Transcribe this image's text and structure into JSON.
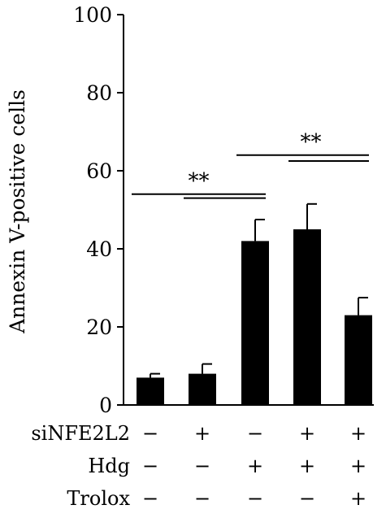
{
  "chart_data": {
    "type": "bar",
    "title": "",
    "xlabel": "",
    "ylabel": "Annexin V-positive cells",
    "ylim": [
      0,
      100
    ],
    "yticks": [
      0,
      20,
      40,
      60,
      80,
      100
    ],
    "grid": false,
    "legend": "none",
    "bar_color": "#000000",
    "values": [
      7,
      8,
      42,
      45,
      23
    ],
    "errors": [
      1,
      2.5,
      5.5,
      6.5,
      4.5
    ],
    "conditions": [
      {
        "label": "siNFE2L2",
        "values": [
          "−",
          "+",
          "−",
          "+",
          "+"
        ]
      },
      {
        "label": "Hdg",
        "values": [
          "−",
          "−",
          "+",
          "+",
          "+"
        ]
      },
      {
        "label": "Trolox",
        "values": [
          "−",
          "−",
          "−",
          "−",
          "+"
        ]
      }
    ],
    "significance": [
      {
        "label": "**",
        "from": 0,
        "to": 2,
        "inner_from": 1,
        "inner_to": 2,
        "y": 54,
        "inner_y": 53
      },
      {
        "label": "**",
        "from": 2,
        "to": 4,
        "inner_from": 3,
        "inner_to": 4,
        "y": 64,
        "inner_y": 62.5
      }
    ]
  }
}
